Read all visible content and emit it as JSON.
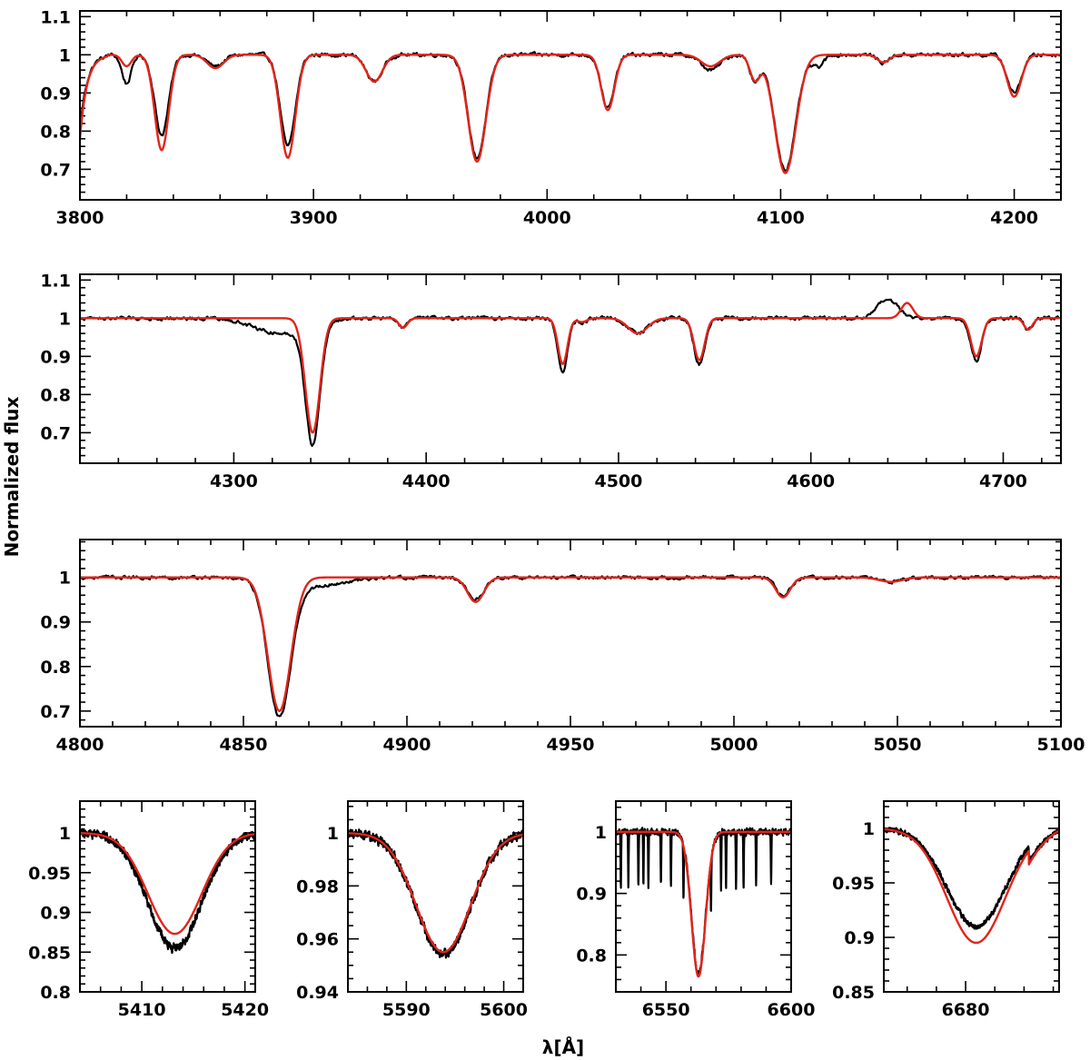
{
  "chart_data": {
    "type": "line",
    "ylabel": "Normalized flux",
    "xlabel": "λ[Å]",
    "series": [
      {
        "key": "obs",
        "color": "#000000"
      },
      {
        "key": "model",
        "color": "#e3241b"
      }
    ],
    "panels": [
      {
        "id": "p1",
        "xlim": [
          3800,
          4220
        ],
        "ylim": [
          0.62,
          1.115
        ],
        "xticks": [
          3800,
          3900,
          4000,
          4100,
          4200
        ],
        "xminor": 20,
        "yticks": [
          0.7,
          0.8,
          0.9,
          1,
          1.1
        ],
        "ytick_labels": [
          "0.7",
          "0.8",
          "0.9",
          "1",
          "1.1"
        ],
        "yminor": 0.02,
        "noise": 0.004,
        "lines": [
          {
            "c": 3820,
            "w": 2.0,
            "obs": 0.075,
            "model": 0.03
          },
          {
            "c": 3835,
            "w": 3.0,
            "obs": 0.21,
            "model": 0.25
          },
          {
            "c": 3858,
            "w": 3.5,
            "obs": 0.03,
            "model": 0.035
          },
          {
            "c": 3889,
            "w": 3.2,
            "obs": 0.24,
            "model": 0.27
          },
          {
            "c": 3926,
            "w": 3.5,
            "obs": 0.07,
            "model": 0.07
          },
          {
            "c": 3970,
            "w": 3.8,
            "obs": 0.27,
            "model": 0.28
          },
          {
            "c": 4026,
            "w": 2.8,
            "obs": 0.14,
            "model": 0.145
          },
          {
            "c": 4070,
            "w": 4.0,
            "obs": 0.04,
            "model": 0.03
          },
          {
            "c": 4089,
            "w": 2.2,
            "obs": 0.065,
            "model": 0.065
          },
          {
            "c": 4102,
            "w": 4.5,
            "obs": 0.3,
            "model": 0.31
          },
          {
            "c": 4116,
            "w": 2.5,
            "obs": 0.03,
            "model": 0.0
          },
          {
            "c": 4144,
            "w": 2.5,
            "obs": 0.02,
            "model": 0.02
          },
          {
            "c": 4200,
            "w": 3.0,
            "obs": 0.1,
            "model": 0.11
          }
        ]
      },
      {
        "id": "p2",
        "xlim": [
          4220,
          4730
        ],
        "ylim": [
          0.62,
          1.115
        ],
        "xticks": [
          4300,
          4400,
          4500,
          4600,
          4700
        ],
        "xminor": 20,
        "yticks": [
          0.7,
          0.8,
          0.9,
          1,
          1.1
        ],
        "ytick_labels": [
          "0.7",
          "0.8",
          "0.9",
          "1",
          "1.1"
        ],
        "yminor": 0.02,
        "noise": 0.004,
        "lines": [
          {
            "c": 4341,
            "w": 3.8,
            "obs": 0.31,
            "model": 0.3
          },
          {
            "c": 4325,
            "w": 14.0,
            "obs": 0.04,
            "model": 0.0
          },
          {
            "c": 4388,
            "w": 2.2,
            "obs": 0.025,
            "model": 0.025
          },
          {
            "c": 4471,
            "w": 2.5,
            "obs": 0.14,
            "model": 0.12
          },
          {
            "c": 4481,
            "w": 2.5,
            "obs": 0.01,
            "model": 0.01
          },
          {
            "c": 4510,
            "w": 5.0,
            "obs": 0.04,
            "model": 0.04
          },
          {
            "c": 4542,
            "w": 2.8,
            "obs": 0.12,
            "model": 0.11
          },
          {
            "c": 4686,
            "w": 2.8,
            "obs": 0.11,
            "model": 0.1
          },
          {
            "c": 4713,
            "w": 2.2,
            "obs": 0.03,
            "model": 0.03
          }
        ],
        "emission": [
          {
            "c": 4640,
            "w": 5.0,
            "obs": 0.05,
            "model": 0.0
          },
          {
            "c": 4650,
            "w": 3.0,
            "obs": 0.0,
            "model": 0.04
          }
        ]
      },
      {
        "id": "p3",
        "xlim": [
          4800,
          5100
        ],
        "ylim": [
          0.665,
          1.085
        ],
        "xticks": [
          4800,
          4850,
          4900,
          4950,
          5000,
          5050,
          5100
        ],
        "xminor": 10,
        "yticks": [
          0.7,
          0.8,
          0.9,
          1
        ],
        "ytick_labels": [
          "0.7",
          "0.8",
          "0.9",
          "1"
        ],
        "yminor": 0.02,
        "noise": 0.003,
        "lines": [
          {
            "c": 4861,
            "w": 3.5,
            "obs": 0.3,
            "model": 0.3
          },
          {
            "c": 4870,
            "w": 10.0,
            "obs": 0.02,
            "model": 0.0
          },
          {
            "c": 4921,
            "w": 2.5,
            "obs": 0.05,
            "model": 0.055
          },
          {
            "c": 5015,
            "w": 2.2,
            "obs": 0.04,
            "model": 0.045
          },
          {
            "c": 5048,
            "w": 3.5,
            "obs": 0.01,
            "model": 0.01
          }
        ]
      },
      {
        "id": "p4",
        "xlim": [
          5404,
          5421
        ],
        "ylim": [
          0.8,
          1.04
        ],
        "xticks": [
          5410,
          5420
        ],
        "xminor": 2,
        "yticks": [
          0.8,
          0.85,
          0.9,
          0.95,
          1
        ],
        "ytick_labels": [
          "0.8",
          "0.85",
          "0.9",
          "0.95",
          "1"
        ],
        "yminor": 0.01,
        "noise": 0.004,
        "lines": [
          {
            "c": 5413.2,
            "w": 2.6,
            "obs": 0.145,
            "model": 0.127
          }
        ]
      },
      {
        "id": "p5",
        "xlim": [
          5584,
          5602
        ],
        "ylim": [
          0.94,
          1.012
        ],
        "xticks": [
          5590,
          5600
        ],
        "xminor": 2,
        "yticks": [
          0.94,
          0.96,
          0.98,
          1
        ],
        "ytick_labels": [
          "0.94",
          "0.96",
          "0.98",
          "1"
        ],
        "yminor": 0.005,
        "noise": 0.0013,
        "lines": [
          {
            "c": 5593.8,
            "w": 2.8,
            "obs": 0.046,
            "model": 0.045
          }
        ]
      },
      {
        "id": "p6",
        "xlim": [
          6530,
          6600
        ],
        "ylim": [
          0.74,
          1.05
        ],
        "xticks": [
          6550,
          6600
        ],
        "xminor": 10,
        "yticks": [
          0.8,
          0.9,
          1
        ],
        "ytick_labels": [
          "0.8",
          "0.9",
          "1"
        ],
        "yminor": 0.02,
        "noise": 0.004,
        "lines": [
          {
            "c": 6563,
            "w": 2.8,
            "obs": 0.23,
            "model": 0.235
          }
        ],
        "telluric": [
          6532,
          6535,
          6539,
          6541,
          6543,
          6548,
          6552,
          6557,
          6568,
          6572,
          6574,
          6578,
          6581,
          6586,
          6592
        ]
      },
      {
        "id": "p7",
        "xlim": [
          6666,
          6696
        ],
        "ylim": [
          0.85,
          1.025
        ],
        "xticks": [
          6680
        ],
        "xminor": 5,
        "yticks": [
          0.85,
          0.9,
          0.95,
          1
        ],
        "ytick_labels": [
          "0.85",
          "0.9",
          "0.95",
          "1"
        ],
        "yminor": 0.01,
        "noise": 0.0018,
        "lines": [
          {
            "c": 6681.8,
            "w": 5.0,
            "obs": 0.09,
            "model": 0.105
          }
        ],
        "slope": 0.0027
      }
    ]
  }
}
